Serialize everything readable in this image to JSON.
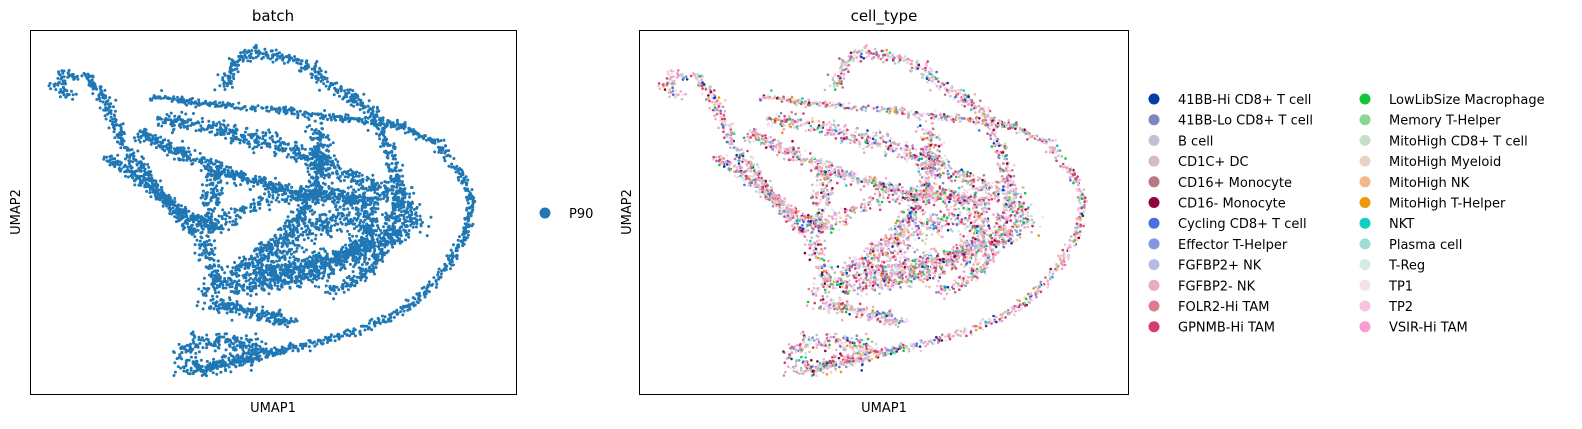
{
  "chart_data": [
    {
      "type": "scatter",
      "title": "batch",
      "xlabel": "UMAP1",
      "ylabel": "UMAP2",
      "grid": false,
      "ticks": false,
      "legend_placement": "right",
      "series": [
        {
          "name": "P90",
          "color": "#1f77b4"
        }
      ]
    },
    {
      "type": "scatter",
      "title": "cell_type",
      "xlabel": "UMAP1",
      "ylabel": "UMAP2",
      "grid": false,
      "ticks": false,
      "legend_placement": "right",
      "series": [
        {
          "name": "41BB-Hi CD8+ T cell",
          "color": "#023fa5"
        },
        {
          "name": "41BB-Lo CD8+ T cell",
          "color": "#7d87b9"
        },
        {
          "name": "B cell",
          "color": "#bec1d4"
        },
        {
          "name": "CD1C+ DC",
          "color": "#d6bcc0"
        },
        {
          "name": "CD16+ Monocyte",
          "color": "#bb7784"
        },
        {
          "name": "CD16- Monocyte",
          "color": "#8e063b"
        },
        {
          "name": "Cycling CD8+ T cell",
          "color": "#4a6fe3"
        },
        {
          "name": "Effector T-Helper",
          "color": "#8595e1"
        },
        {
          "name": "FGFBP2+ NK",
          "color": "#b5bbe3"
        },
        {
          "name": "FGFBP2- NK",
          "color": "#e6afb9"
        },
        {
          "name": "FOLR2-Hi TAM",
          "color": "#e07b91"
        },
        {
          "name": "GPNMB-Hi TAM",
          "color": "#d33f6a"
        },
        {
          "name": "LowLibSize Macrophage",
          "color": "#11c638"
        },
        {
          "name": "Memory T-Helper",
          "color": "#8dd593"
        },
        {
          "name": "MitoHigh CD8+ T cell",
          "color": "#c6dec7"
        },
        {
          "name": "MitoHigh Myeloid",
          "color": "#ead3c6"
        },
        {
          "name": "MitoHigh NK",
          "color": "#f0b98d"
        },
        {
          "name": "MitoHigh T-Helper",
          "color": "#ef9708"
        },
        {
          "name": "NKT",
          "color": "#0fcfc0"
        },
        {
          "name": "Plasma cell",
          "color": "#9cded6"
        },
        {
          "name": "T-Reg",
          "color": "#d5eae7"
        },
        {
          "name": "TP1",
          "color": "#f3e1eb"
        },
        {
          "name": "TP2",
          "color": "#f6c4e1"
        },
        {
          "name": "VSIR-Hi TAM",
          "color": "#f79cd4"
        }
      ]
    }
  ]
}
